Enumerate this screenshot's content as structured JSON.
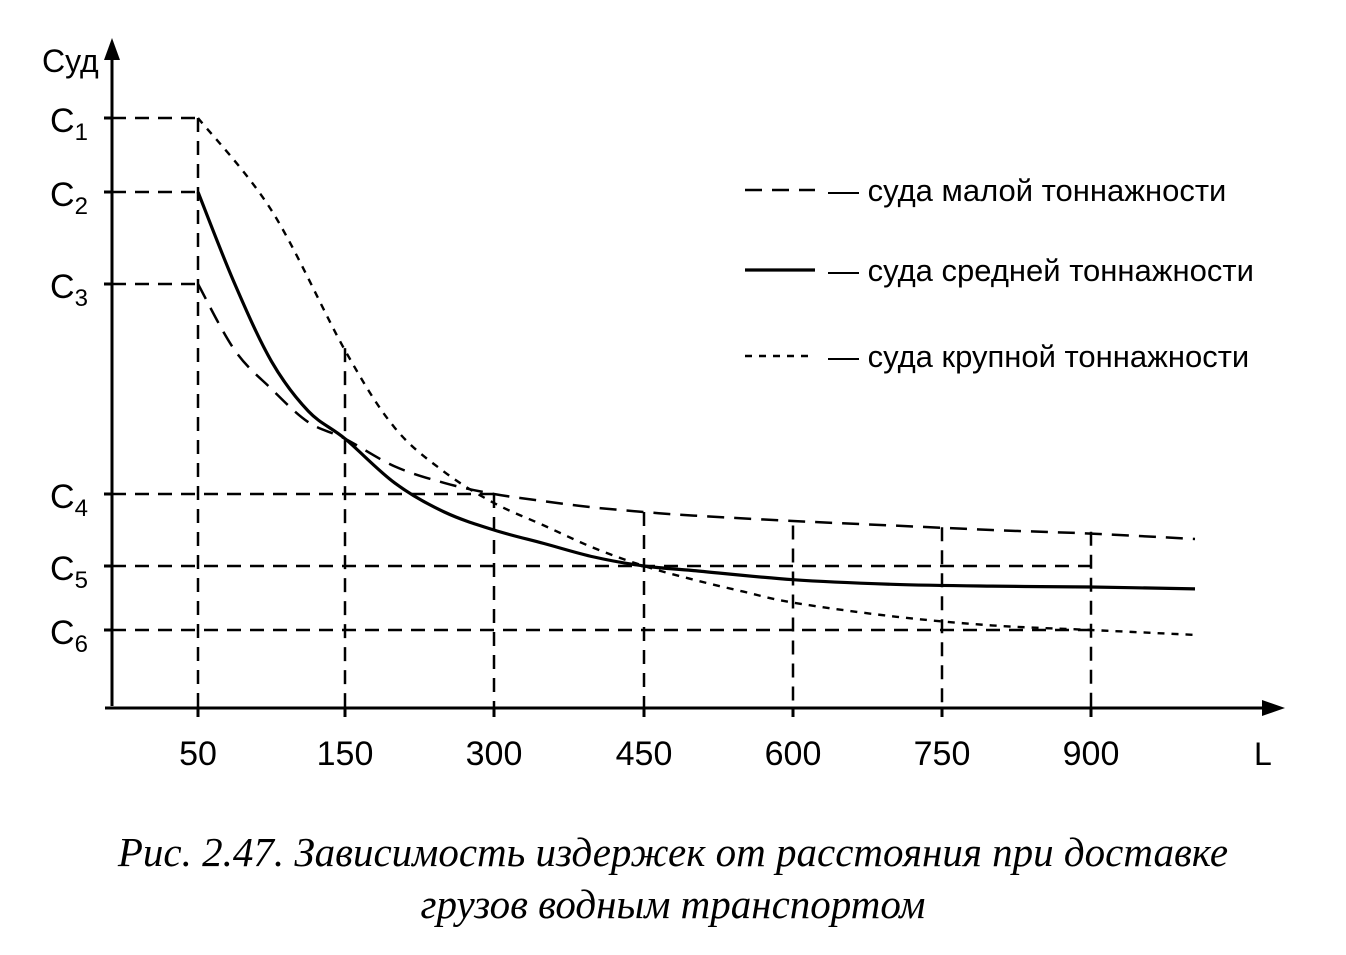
{
  "chart_data": {
    "type": "line",
    "ylabel": "Суд",
    "xlabel": "L",
    "x_ticks": [
      "50",
      "150",
      "300",
      "450",
      "600",
      "750",
      "900"
    ],
    "y_levels": [
      {
        "label": "C1",
        "value": 6.0
      },
      {
        "label": "C2",
        "value": 5.2
      },
      {
        "label": "C3",
        "value": 4.2
      },
      {
        "label": "C4",
        "value": 2.3
      },
      {
        "label": "C5",
        "value": 1.5
      },
      {
        "label": "C6",
        "value": 0.8
      }
    ],
    "xlim": [
      0,
      1000
    ],
    "ylim": [
      0,
      7
    ],
    "series": [
      {
        "name": "— суда малой тоннажности",
        "style": "dashed",
        "x": [
          50,
          75,
          100,
          125,
          150,
          200,
          250,
          300,
          350,
          400,
          450,
          500,
          600,
          700,
          800,
          900,
          1000
        ],
        "y": [
          4.2,
          3.6,
          3.25,
          2.95,
          2.8,
          2.55,
          2.4,
          2.3,
          2.22,
          2.15,
          2.1,
          2.06,
          2.0,
          1.95,
          1.9,
          1.86,
          1.8
        ]
      },
      {
        "name": "— суда средней тоннажности",
        "style": "solid",
        "x": [
          50,
          75,
          100,
          125,
          150,
          200,
          250,
          300,
          350,
          400,
          450,
          500,
          600,
          700,
          800,
          900,
          1000
        ],
        "y": [
          5.2,
          4.2,
          3.5,
          3.05,
          2.8,
          2.4,
          2.1,
          1.9,
          1.75,
          1.6,
          1.5,
          1.45,
          1.35,
          1.3,
          1.28,
          1.27,
          1.25
        ]
      },
      {
        "name": "— суда крупной тоннажности",
        "style": "dotted",
        "x": [
          50,
          100,
          150,
          200,
          250,
          300,
          350,
          400,
          450,
          500,
          550,
          600,
          700,
          800,
          900,
          1000
        ],
        "y": [
          6.0,
          5.0,
          3.6,
          2.9,
          2.5,
          2.2,
          1.95,
          1.7,
          1.5,
          1.35,
          1.22,
          1.1,
          0.95,
          0.85,
          0.8,
          0.75
        ]
      }
    ],
    "grid": false,
    "legend": "top-right"
  },
  "caption": {
    "line1": "Рис. 2.47. Зависимость издержек от расстояния при доставке",
    "line2": "грузов водным транспортом"
  }
}
